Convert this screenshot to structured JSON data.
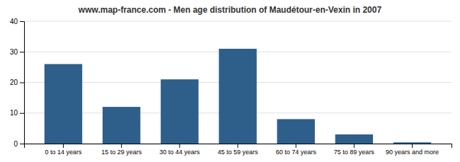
{
  "chart_data": {
    "type": "bar",
    "title": "www.map-france.com - Men age distribution of Maudétour-en-Vexin in 2007",
    "categories": [
      "0 to 14 years",
      "15 to 29 years",
      "30 to 44 years",
      "45 to 59 years",
      "60 to 74 years",
      "75 to 89 years",
      "90 years and more"
    ],
    "values": [
      26,
      12,
      21,
      31,
      8,
      3,
      0.4
    ],
    "color": "#2e5f8a",
    "ylim": [
      0,
      40
    ],
    "yticks": [
      0,
      10,
      20,
      30,
      40
    ],
    "grid": true
  }
}
